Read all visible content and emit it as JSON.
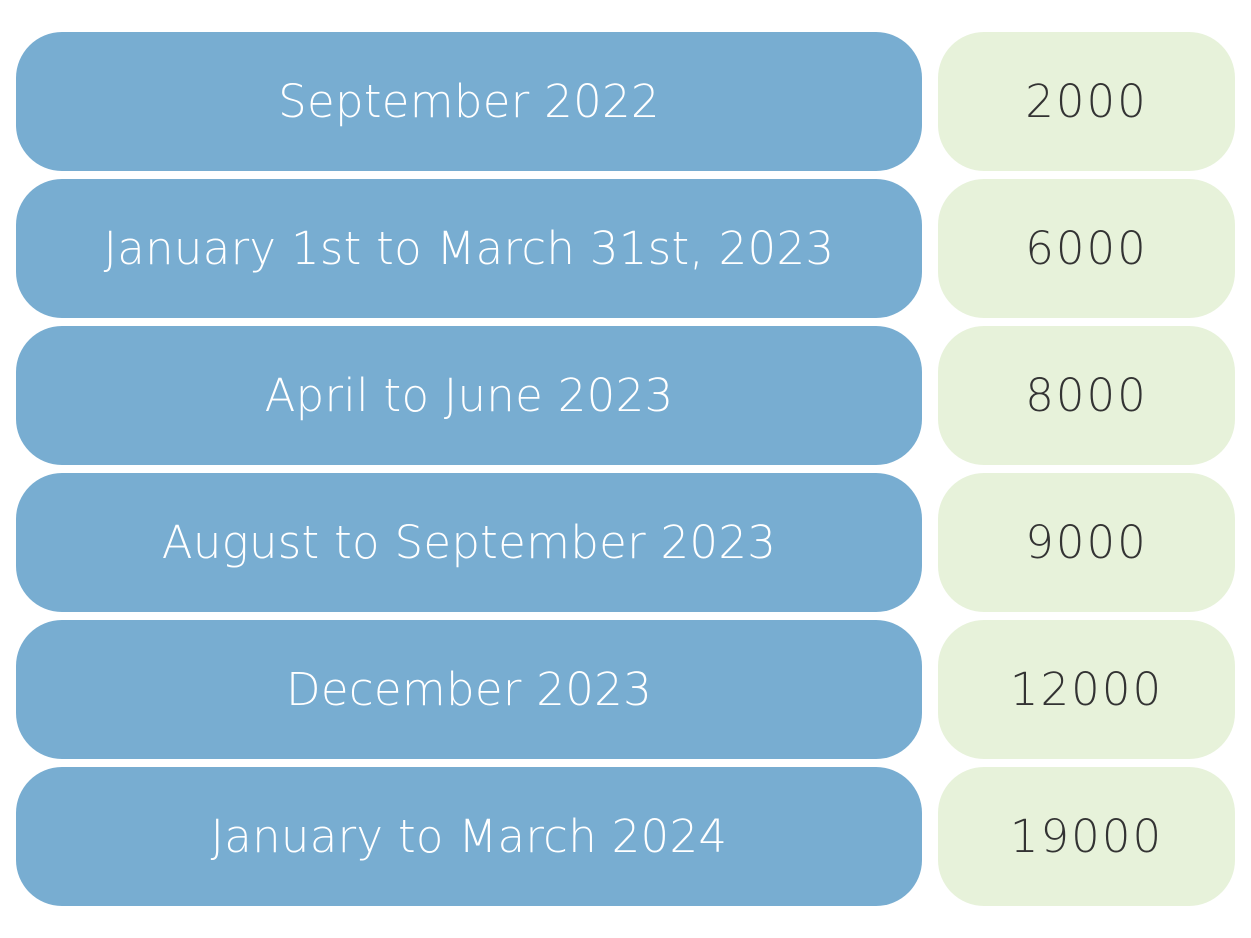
{
  "colors": {
    "period_background": "#78ADD1",
    "value_background": "#E7F2DA",
    "period_text": "#FFFFFF",
    "value_text": "#333333"
  },
  "rows": [
    {
      "period": "September 2022",
      "value": "2000"
    },
    {
      "period": "January 1st to March 31st, 2023",
      "value": "6000"
    },
    {
      "period": "April to June 2023",
      "value": "8000"
    },
    {
      "period": "August to September 2023",
      "value": "9000"
    },
    {
      "period": "December 2023",
      "value": "12000"
    },
    {
      "period": "January to March 2024",
      "value": "19000"
    }
  ]
}
